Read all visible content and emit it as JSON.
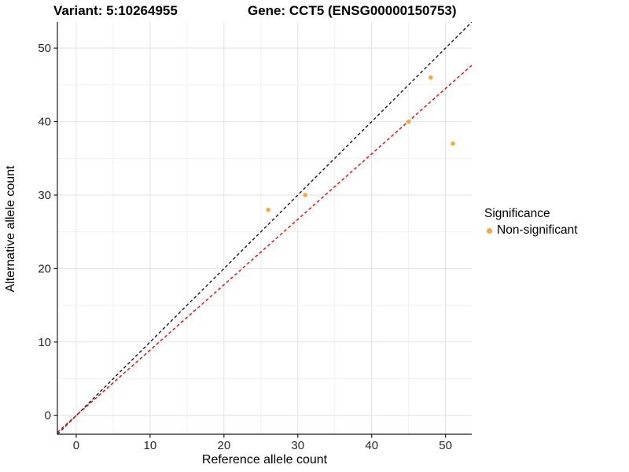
{
  "title": {
    "variant": "Variant: 5:10264955",
    "gene": "Gene: CCT5 (ENSG00000150753)"
  },
  "chart_data": {
    "type": "scatter",
    "xlabel": "Reference allele count",
    "ylabel": "Alternative allele count",
    "xlim": [
      -2.55,
      53.55
    ],
    "ylim": [
      -2.55,
      53.55
    ],
    "xticks": [
      0,
      10,
      20,
      30,
      40,
      50
    ],
    "yticks": [
      0,
      10,
      20,
      30,
      40,
      50
    ],
    "minor_xticks": [
      5,
      15,
      25,
      35,
      45
    ],
    "minor_yticks": [
      5,
      15,
      25,
      35,
      45
    ],
    "grid": "major+minor",
    "series": [
      {
        "name": "Non-significant",
        "color": "#FFA430",
        "points": [
          [
            26,
            28
          ],
          [
            31,
            30
          ],
          [
            45,
            40
          ],
          [
            48,
            46
          ],
          [
            51,
            37
          ]
        ]
      }
    ],
    "reference_lines": [
      {
        "name": "identity-line",
        "slope": 1,
        "intercept": 0,
        "color": "#1A1A1A",
        "style": "dashed"
      },
      {
        "name": "fit-line",
        "slope": 0.89,
        "intercept": 0,
        "color": "#FF0000",
        "style": "dashed"
      }
    ],
    "legend": {
      "title": "Significance",
      "position": "right",
      "entries": [
        {
          "label": "Non-significant",
          "color": "#FFA430"
        }
      ]
    }
  },
  "colors": {
    "background": "#FFFFFF",
    "major_grid": "#E2E2E2",
    "minor_grid": "#F0F0F0",
    "axis_line": "#1A1A1A",
    "tick_label": "#262626"
  }
}
